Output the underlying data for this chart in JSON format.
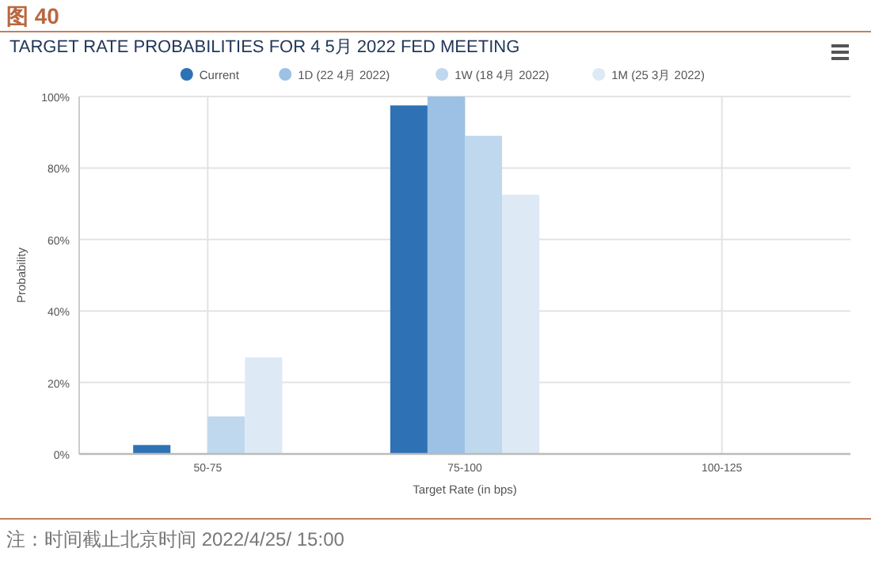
{
  "chart_data": {
    "type": "bar",
    "title": "图 40",
    "subtitle": "TARGET RATE PROBABILITIES FOR 4 5月 2022 FED MEETING",
    "xlabel": "Target Rate (in bps)",
    "ylabel": "Probability",
    "categories": [
      "50-75",
      "75-100",
      "100-125"
    ],
    "series": [
      {
        "name": "Current",
        "color": "#2e72b5",
        "values": [
          2.5,
          97.5,
          0
        ]
      },
      {
        "name": "1D (22 4月 2022)",
        "color": "#9dc1e5",
        "values": [
          0,
          100,
          0
        ]
      },
      {
        "name": "1W (18 4月 2022)",
        "color": "#bfd8ee",
        "values": [
          10.5,
          89,
          0
        ]
      },
      {
        "name": "1M (25 3月 2022)",
        "color": "#dde9f5",
        "values": [
          27,
          72.5,
          0
        ]
      }
    ],
    "ylim": [
      0,
      100
    ],
    "yticks": [
      {
        "value": 0,
        "label": "0%"
      },
      {
        "value": 20,
        "label": "20%"
      },
      {
        "value": 40,
        "label": "40%"
      },
      {
        "value": 60,
        "label": "60%"
      },
      {
        "value": 80,
        "label": "80%"
      },
      {
        "value": 100,
        "label": "100%"
      }
    ],
    "grid": true,
    "legend": "top",
    "annotations": [
      "注：时间截止北京时间 2022/4/25/ 15:00"
    ]
  }
}
